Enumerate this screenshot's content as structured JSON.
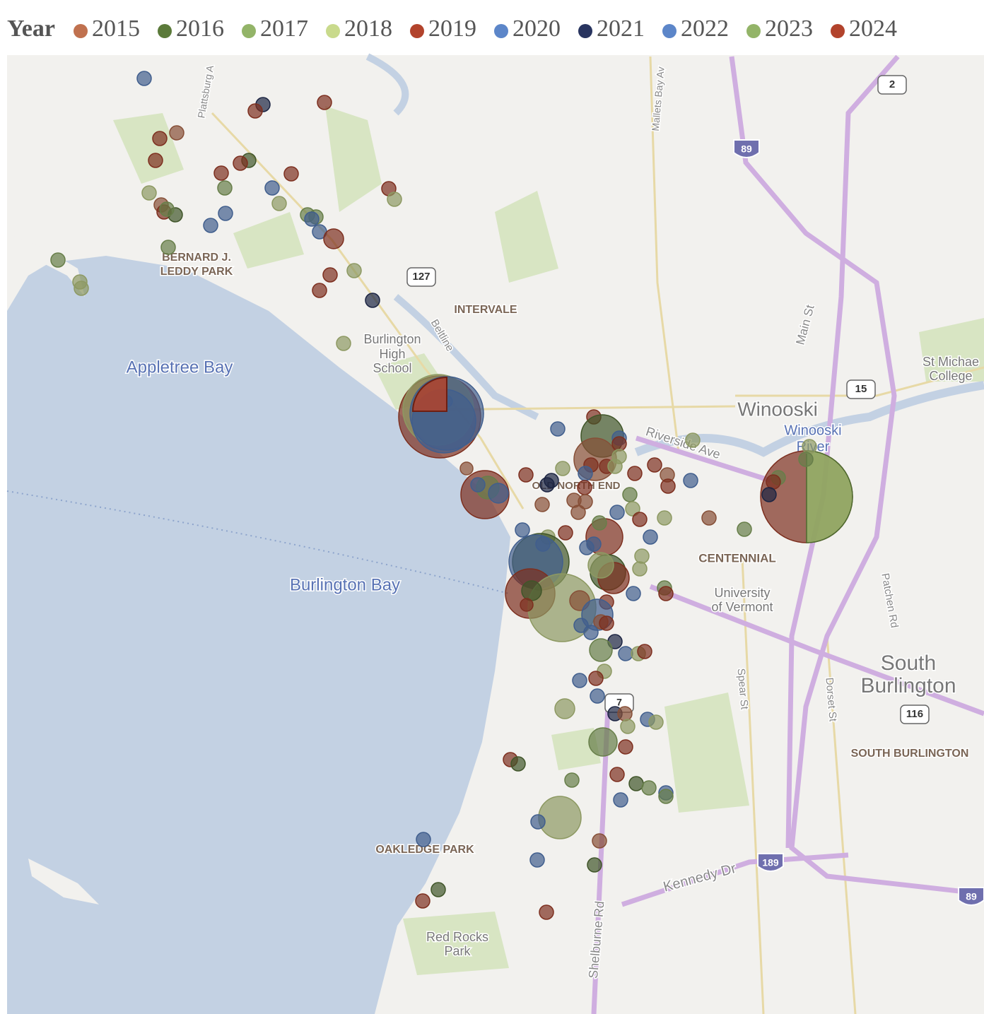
{
  "legend": {
    "title": "Year",
    "items": [
      {
        "name": "2015",
        "color": "#c0714f"
      },
      {
        "name": "2016",
        "color": "#5b7a3a"
      },
      {
        "name": "2017",
        "color": "#93b468"
      },
      {
        "name": "2018",
        "color": "#c9da8c"
      },
      {
        "name": "2019",
        "color": "#b2432c"
      },
      {
        "name": "2020",
        "color": "#5c86c9"
      },
      {
        "name": "2021",
        "color": "#28345f"
      },
      {
        "name": "2022",
        "color": "#5c86c9"
      },
      {
        "name": "2023",
        "color": "#93b468"
      },
      {
        "name": "2024",
        "color": "#b2432c"
      }
    ]
  },
  "map_labels": [
    "BERNARD J.",
    "LEDDY PARK",
    "Plattsburg A",
    "127",
    "INTERVALE",
    "Beltline",
    "Burlington",
    "High",
    "School",
    "Appletree Bay",
    "Burlington Bay",
    "Winooski",
    "Winooski",
    "River",
    "Riverside Ave",
    "OLD NORTH END",
    "CENTENNIAL",
    "University",
    "of Vermont",
    "St Michae",
    "College",
    "Main St",
    "15",
    "2",
    "89",
    "South",
    "Burlington",
    "116",
    "SOUTH BURLINGTON",
    "OAKLEDGE PARK",
    "Red Rocks",
    "Park",
    "Kennedy Dr",
    "189",
    "Shelburne Rd",
    "Spear St",
    "Dorset St",
    "Patchen Rd",
    "Mallets Bay Av",
    "7",
    "89"
  ]
}
